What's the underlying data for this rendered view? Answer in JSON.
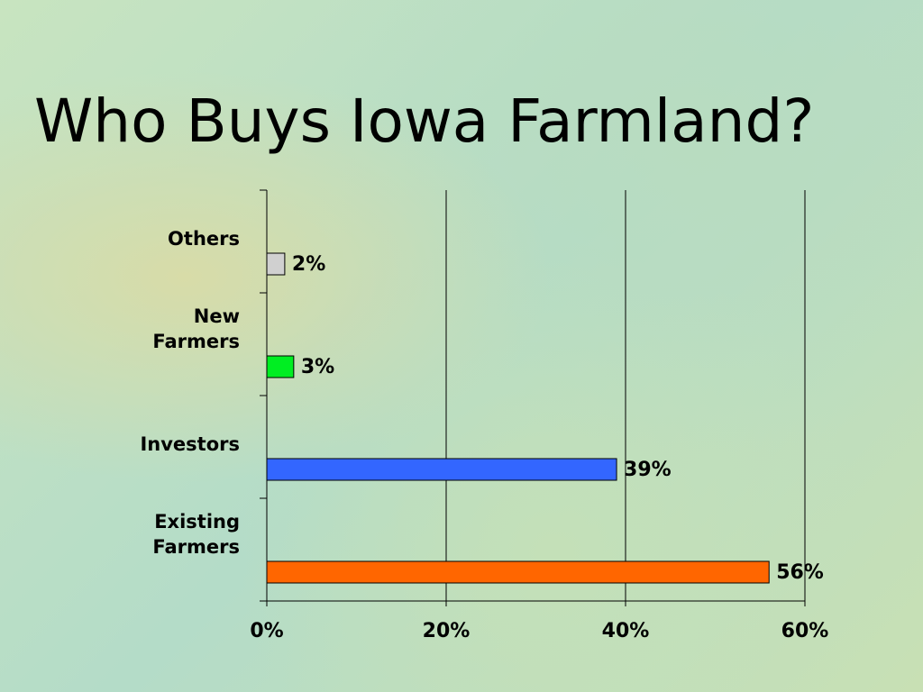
{
  "chart_data": {
    "type": "bar",
    "orientation": "horizontal",
    "title": "Who Buys Iowa Farmland?",
    "categories": [
      "Others",
      "New Farmers",
      "Investors",
      "Existing Farmers"
    ],
    "values": [
      2,
      3,
      39,
      56
    ],
    "value_labels": [
      "2%",
      "3%",
      "39%",
      "56%"
    ],
    "colors": [
      "#d0d0d0",
      "#00ee22",
      "#3366ff",
      "#ff6600"
    ],
    "xlim": [
      0,
      60
    ],
    "xticks": [
      {
        "value": 0,
        "label": "0%"
      },
      {
        "value": 20,
        "label": "20%"
      },
      {
        "value": 40,
        "label": "40%"
      },
      {
        "value": 60,
        "label": "60%"
      }
    ],
    "grid": true
  }
}
